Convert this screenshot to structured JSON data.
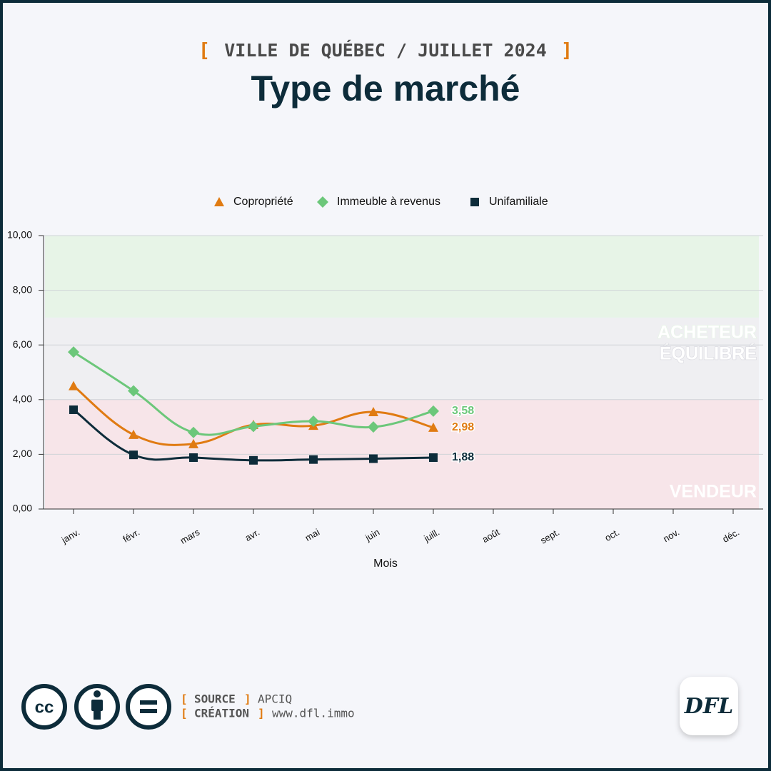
{
  "chart_data": {
    "type": "line",
    "bracket_open": "[",
    "bracket_close": "]",
    "subtitle": "VILLE DE QUÉBEC / JUILLET 2024",
    "title": "Type de marché",
    "categories": [
      "janv.",
      "févr.",
      "mars",
      "avr.",
      "mai",
      "juin",
      "juill.",
      "août",
      "sept.",
      "oct.",
      "nov.",
      "déc."
    ],
    "series": [
      {
        "name": "Copropriété",
        "color": "#e07b12",
        "marker": "triangle",
        "values": [
          4.5,
          2.72,
          2.38,
          3.08,
          3.05,
          3.55,
          2.98,
          null,
          null,
          null,
          null,
          null
        ],
        "value_labels": [
          null,
          null,
          null,
          null,
          null,
          null,
          "2,98",
          null,
          null,
          null,
          null,
          null
        ]
      },
      {
        "name": "Immeuble à revenus",
        "color": "#6cc77a",
        "marker": "diamond",
        "values": [
          5.74,
          4.32,
          2.8,
          3.02,
          3.21,
          3.0,
          3.58,
          null,
          null,
          null,
          null,
          null
        ],
        "value_labels": [
          null,
          null,
          null,
          null,
          null,
          null,
          "3,58",
          null,
          null,
          null,
          null,
          null
        ]
      },
      {
        "name": "Unifamiliale",
        "color": "#0d2c3a",
        "marker": "square",
        "values": [
          3.63,
          1.98,
          1.88,
          1.78,
          1.81,
          1.84,
          1.88,
          null,
          null,
          null,
          null,
          null
        ],
        "value_labels": [
          null,
          null,
          null,
          null,
          null,
          null,
          "1,88",
          null,
          null,
          null,
          null,
          null
        ]
      }
    ],
    "zones": [
      {
        "from": 7,
        "to": 10,
        "label": "ACHETEUR",
        "color": "#e7f4e7"
      },
      {
        "from": 4,
        "to": 7,
        "label": "ÉQUILIBRÉ",
        "color": "#efeff2"
      },
      {
        "from": 0,
        "to": 4,
        "label": "VENDEUR",
        "color": "#f7e5e9"
      }
    ],
    "ylim": [
      0,
      10
    ],
    "yticks": [
      {
        "value": 0,
        "label": "0,00"
      },
      {
        "value": 2,
        "label": "2,00"
      },
      {
        "value": 4,
        "label": "4,00"
      },
      {
        "value": 6,
        "label": "6,00"
      },
      {
        "value": 8,
        "label": "8,00"
      },
      {
        "value": 10,
        "label": "10,00"
      }
    ],
    "xlabel": "Mois",
    "grid": true,
    "legend": "top"
  },
  "footer": {
    "cc": "cc",
    "source_label": "SOURCE",
    "source": "APCIQ",
    "creation_label": "CRÉATION",
    "creation": "www.dfl.immo",
    "logo": "DFL"
  }
}
